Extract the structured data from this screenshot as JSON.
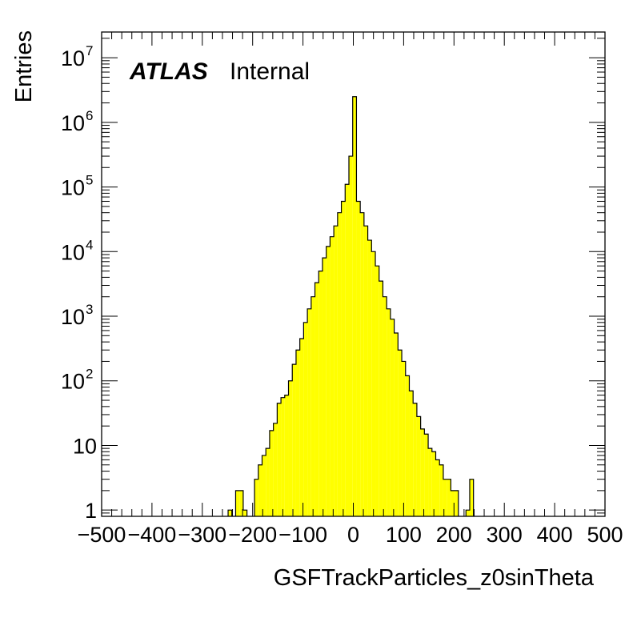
{
  "chart_data": {
    "type": "bar",
    "title": "",
    "xlabel": "GSFTrackParticles_z0sinTheta",
    "ylabel": "Entries",
    "xlim": [
      -500,
      500
    ],
    "ylim": [
      0.8,
      25000000
    ],
    "yscale": "log",
    "bin_width": 7.5,
    "fill_color": "#ffff00",
    "line_color": "#000000",
    "x_tick_labels": [
      "−500",
      "−400",
      "−300",
      "−200",
      "−100",
      "0",
      "100",
      "200",
      "300",
      "400",
      "500"
    ],
    "x_tick_values": [
      -500,
      -400,
      -300,
      -200,
      -100,
      0,
      100,
      200,
      300,
      400,
      500
    ],
    "y_tick_values": [
      1,
      10,
      100,
      1000,
      10000,
      100000,
      1000000,
      10000000
    ],
    "y_tick_labels": [
      {
        "base": "1",
        "exp": ""
      },
      {
        "base": "10",
        "exp": ""
      },
      {
        "base": "10",
        "exp": "2"
      },
      {
        "base": "10",
        "exp": "3"
      },
      {
        "base": "10",
        "exp": "4"
      },
      {
        "base": "10",
        "exp": "5"
      },
      {
        "base": "10",
        "exp": "6"
      },
      {
        "base": "10",
        "exp": "7"
      }
    ],
    "annotation": {
      "bold": "ATLAS",
      "text": "Internal"
    },
    "bins": [
      {
        "x": -245.0,
        "y": 1
      },
      {
        "x": -230.0,
        "y": 2
      },
      {
        "x": -222.5,
        "y": 2
      },
      {
        "x": -215.0,
        "y": 1
      },
      {
        "x": -192.5,
        "y": 3
      },
      {
        "x": -185.0,
        "y": 5
      },
      {
        "x": -177.5,
        "y": 7
      },
      {
        "x": -170.0,
        "y": 9
      },
      {
        "x": -162.5,
        "y": 17
      },
      {
        "x": -155.0,
        "y": 22
      },
      {
        "x": -147.5,
        "y": 45
      },
      {
        "x": -140.0,
        "y": 55
      },
      {
        "x": -132.5,
        "y": 60
      },
      {
        "x": -125.0,
        "y": 100
      },
      {
        "x": -117.5,
        "y": 180
      },
      {
        "x": -110.0,
        "y": 300
      },
      {
        "x": -102.5,
        "y": 450
      },
      {
        "x": -95.0,
        "y": 800
      },
      {
        "x": -87.5,
        "y": 1300
      },
      {
        "x": -80.0,
        "y": 2000
      },
      {
        "x": -72.5,
        "y": 3300
      },
      {
        "x": -65.0,
        "y": 5000
      },
      {
        "x": -57.5,
        "y": 8000
      },
      {
        "x": -50.0,
        "y": 12000
      },
      {
        "x": -42.5,
        "y": 17000
      },
      {
        "x": -35.0,
        "y": 25000
      },
      {
        "x": -27.5,
        "y": 40000
      },
      {
        "x": -20.0,
        "y": 60000
      },
      {
        "x": -12.5,
        "y": 110000
      },
      {
        "x": -5.0,
        "y": 300000
      },
      {
        "x": 2.5,
        "y": 2500000
      },
      {
        "x": 10.0,
        "y": 60000
      },
      {
        "x": 17.5,
        "y": 40000
      },
      {
        "x": 25.0,
        "y": 25000
      },
      {
        "x": 32.5,
        "y": 15000
      },
      {
        "x": 40.0,
        "y": 10000
      },
      {
        "x": 47.5,
        "y": 6000
      },
      {
        "x": 55.0,
        "y": 3500
      },
      {
        "x": 62.5,
        "y": 2000
      },
      {
        "x": 70.0,
        "y": 1300
      },
      {
        "x": 77.5,
        "y": 900
      },
      {
        "x": 85.0,
        "y": 550
      },
      {
        "x": 92.5,
        "y": 300
      },
      {
        "x": 100.0,
        "y": 200
      },
      {
        "x": 107.5,
        "y": 120
      },
      {
        "x": 115.0,
        "y": 70
      },
      {
        "x": 122.5,
        "y": 45
      },
      {
        "x": 130.0,
        "y": 28
      },
      {
        "x": 137.5,
        "y": 18
      },
      {
        "x": 145.0,
        "y": 15
      },
      {
        "x": 152.5,
        "y": 9
      },
      {
        "x": 160.0,
        "y": 8
      },
      {
        "x": 167.5,
        "y": 6
      },
      {
        "x": 175.0,
        "y": 5
      },
      {
        "x": 182.5,
        "y": 3
      },
      {
        "x": 190.0,
        "y": 3
      },
      {
        "x": 197.5,
        "y": 2
      },
      {
        "x": 205.0,
        "y": 2
      },
      {
        "x": 227.5,
        "y": 1
      },
      {
        "x": 235.0,
        "y": 3
      }
    ]
  }
}
